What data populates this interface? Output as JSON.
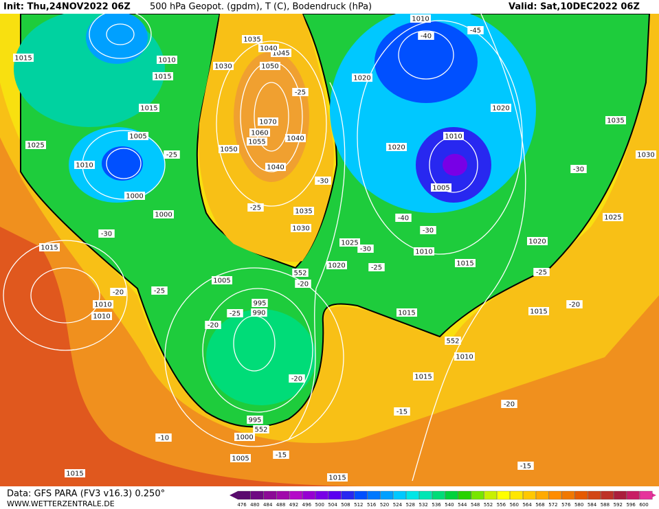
{
  "header": {
    "init": "Init: Thu,24NOV2022 06Z",
    "title": "500 hPa Geopot. (gpdm), T (C), Bodendruck (hPa)",
    "valid": "Valid: Sat,10DEC2022 06Z"
  },
  "footer": {
    "data": "Data: GFS PARA (FV3 v16.3) 0.250°",
    "site": "WWW.WETTERZENTRALE.DE"
  },
  "scale": {
    "labels": [
      476,
      480,
      484,
      488,
      492,
      496,
      500,
      504,
      508,
      512,
      516,
      520,
      524,
      528,
      532,
      536,
      540,
      544,
      548,
      552,
      556,
      560,
      564,
      568,
      572,
      576,
      580,
      584,
      588,
      592,
      596,
      600
    ],
    "colors": [
      "#5a0a6e",
      "#6e0a82",
      "#8c0a96",
      "#a00aaa",
      "#b40ac8",
      "#9600d2",
      "#7800e6",
      "#5a00f0",
      "#2828f0",
      "#0050ff",
      "#0078ff",
      "#00a0ff",
      "#00c8ff",
      "#00e6e6",
      "#00e6b4",
      "#00dc78",
      "#00d23c",
      "#28d200",
      "#78e600",
      "#c8f000",
      "#ffff00",
      "#ffe600",
      "#ffc800",
      "#ffaa00",
      "#ff8c00",
      "#f07800",
      "#e65a00",
      "#d24614",
      "#be3228",
      "#aa1e3c",
      "#c81e64",
      "#e6329b"
    ]
  },
  "map_labels": [
    "1010",
    "-40",
    "-45",
    "1015",
    "1010",
    "1030",
    "1050",
    "1035",
    "1045",
    "1040",
    "1015",
    "1020",
    "-25",
    "1020",
    "1015",
    "1035",
    "1070",
    "1060",
    "1005",
    "1040",
    "1055",
    "1010",
    "1025",
    "1050",
    "1020",
    "-25",
    "1030",
    "1010",
    "1040",
    "-30",
    "-30",
    "1005",
    "1000",
    "-25",
    "1035",
    "1000",
    "-40",
    "1025",
    "1030",
    "-30",
    "-30",
    "1020",
    "1025",
    "-30",
    "1015",
    "1010",
    "1015",
    "1020",
    "-25",
    "552",
    "-25",
    "1005",
    "-20",
    "-25",
    "-20",
    "-20",
    "995",
    "990",
    "1010",
    "1015",
    "1015",
    "1010",
    "-25",
    "-20",
    "552",
    "1010",
    "1015",
    "-20",
    "-20",
    "-15",
    "995",
    "552",
    "1000",
    "-10",
    "-15",
    "1005",
    "-15",
    "1015",
    "1015"
  ]
}
